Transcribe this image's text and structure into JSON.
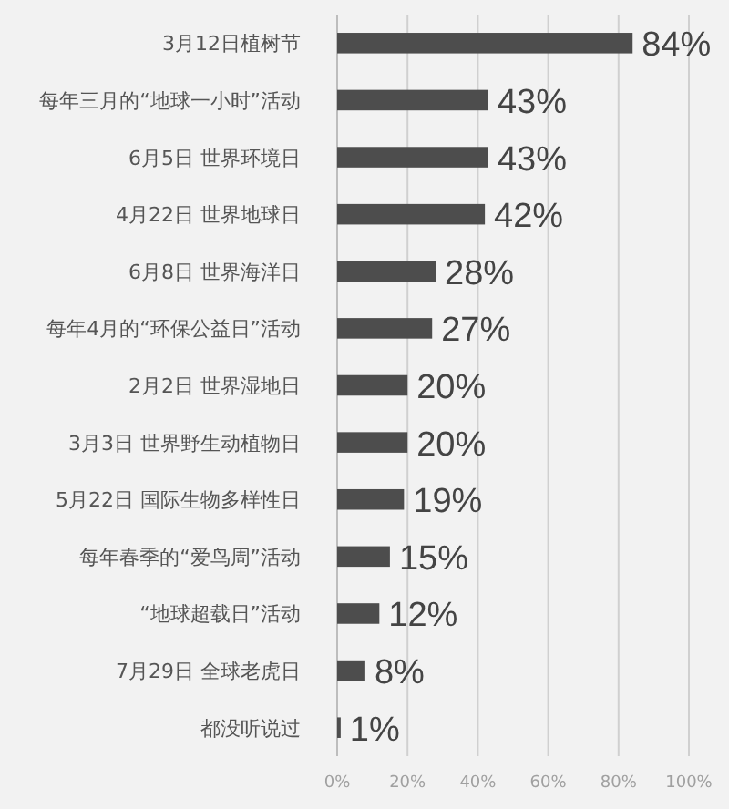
{
  "chart_data": {
    "type": "bar",
    "orientation": "horizontal",
    "categories": [
      "3月12日植树节",
      "每年三月的“地球一小时”活动",
      "6月5日 世界环境日",
      "4月22日 世界地球日",
      "6月8日 世界海洋日",
      "每年4月的“环保公益日”活动",
      "2月2日 世界湿地日",
      "3月3日 世界野生动植物日",
      "5月22日 国际生物多样性日",
      "每年春季的“爱鸟周”活动",
      "“地球超载日”活动",
      "7月29日 全球老虎日",
      "都没听说过"
    ],
    "values": [
      84,
      43,
      43,
      42,
      28,
      27,
      20,
      20,
      19,
      15,
      12,
      8,
      1
    ],
    "value_labels": [
      "84%",
      "43%",
      "43%",
      "42%",
      "28%",
      "27%",
      "20%",
      "20%",
      "19%",
      "15%",
      "12%",
      "8%",
      "1%"
    ],
    "color": "#4d4d4d",
    "xlim": [
      0,
      100
    ],
    "xticks": [
      {
        "value": 0,
        "label": "0%"
      },
      {
        "value": 20,
        "label": "20%"
      },
      {
        "value": 40,
        "label": "40%"
      },
      {
        "value": 60,
        "label": "60%"
      },
      {
        "value": 80,
        "label": "80%"
      },
      {
        "value": 100,
        "label": "100%"
      }
    ],
    "grid": "x"
  }
}
